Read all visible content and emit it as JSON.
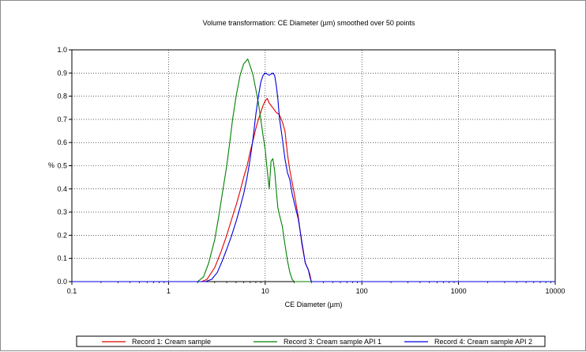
{
  "chart_data": {
    "type": "line",
    "title": "Volume transformation: CE Diameter (µm) smoothed over 50 points",
    "xlabel": "CE Diameter (µm)",
    "ylabel": "%",
    "x_scale": "log",
    "xlim": [
      0.1,
      10000
    ],
    "ylim": [
      0,
      1.0
    ],
    "x_ticks": [
      0.1,
      1,
      10,
      100,
      1000,
      10000
    ],
    "x_tick_labels": [
      "0.1",
      "1",
      "10",
      "100",
      "1000",
      "10000"
    ],
    "y_ticks": [
      0,
      0.1,
      0.2,
      0.3,
      0.4,
      0.5,
      0.6,
      0.7,
      0.8,
      0.9,
      1.0
    ],
    "y_tick_labels": [
      "0.0",
      "0.1",
      "0.2",
      "0.3",
      "0.4",
      "0.5",
      "0.6",
      "0.7",
      "0.8",
      "0.9",
      "1.0"
    ],
    "grid": "dotted",
    "legend_position": "bottom",
    "series": [
      {
        "name": "Record 1: Cream sample",
        "color": "#e00000",
        "points": [
          [
            0.1,
            0
          ],
          [
            2.2,
            0
          ],
          [
            2.5,
            0.01
          ],
          [
            3,
            0.06
          ],
          [
            3.5,
            0.13
          ],
          [
            4,
            0.2
          ],
          [
            4.5,
            0.27
          ],
          [
            5,
            0.33
          ],
          [
            5.5,
            0.39
          ],
          [
            6,
            0.45
          ],
          [
            6.5,
            0.5
          ],
          [
            7,
            0.56
          ],
          [
            7.5,
            0.61
          ],
          [
            8,
            0.66
          ],
          [
            8.5,
            0.7
          ],
          [
            9,
            0.73
          ],
          [
            9.5,
            0.76
          ],
          [
            10,
            0.78
          ],
          [
            10.5,
            0.79
          ],
          [
            11,
            0.77
          ],
          [
            12,
            0.75
          ],
          [
            13,
            0.73
          ],
          [
            14,
            0.72
          ],
          [
            15,
            0.69
          ],
          [
            16,
            0.65
          ],
          [
            17,
            0.55
          ],
          [
            18,
            0.48
          ],
          [
            20,
            0.38
          ],
          [
            22,
            0.28
          ],
          [
            24,
            0.16
          ],
          [
            26,
            0.08
          ],
          [
            28,
            0.05
          ],
          [
            29,
            0.03
          ],
          [
            30,
            0.0
          ],
          [
            10000,
            0
          ]
        ]
      },
      {
        "name": "Record 3: Cream sample API 1",
        "color": "#008000",
        "points": [
          [
            0.1,
            0
          ],
          [
            2,
            0
          ],
          [
            2.3,
            0.02
          ],
          [
            2.6,
            0.08
          ],
          [
            3,
            0.18
          ],
          [
            3.3,
            0.28
          ],
          [
            3.6,
            0.38
          ],
          [
            4,
            0.5
          ],
          [
            4.3,
            0.6
          ],
          [
            4.6,
            0.7
          ],
          [
            5,
            0.8
          ],
          [
            5.5,
            0.89
          ],
          [
            6,
            0.94
          ],
          [
            6.3,
            0.95
          ],
          [
            6.6,
            0.96
          ],
          [
            7,
            0.93
          ],
          [
            7.5,
            0.89
          ],
          [
            8,
            0.83
          ],
          [
            8.5,
            0.77
          ],
          [
            9,
            0.7
          ],
          [
            9.5,
            0.63
          ],
          [
            10,
            0.57
          ],
          [
            10.5,
            0.48
          ],
          [
            11,
            0.4
          ],
          [
            11.5,
            0.52
          ],
          [
            12,
            0.53
          ],
          [
            12.5,
            0.48
          ],
          [
            13,
            0.4
          ],
          [
            13.5,
            0.32
          ],
          [
            14,
            0.29
          ],
          [
            15,
            0.24
          ],
          [
            16,
            0.16
          ],
          [
            17,
            0.09
          ],
          [
            18,
            0.04
          ],
          [
            19,
            0.01
          ],
          [
            20,
            0.0
          ],
          [
            10000,
            0
          ]
        ]
      },
      {
        "name": "Record 4: Cream sample API 2",
        "color": "#0000e0",
        "points": [
          [
            0.1,
            0
          ],
          [
            2.4,
            0
          ],
          [
            2.8,
            0.01
          ],
          [
            3.2,
            0.04
          ],
          [
            3.6,
            0.09
          ],
          [
            4,
            0.14
          ],
          [
            4.5,
            0.2
          ],
          [
            5,
            0.26
          ],
          [
            5.5,
            0.32
          ],
          [
            6,
            0.38
          ],
          [
            6.5,
            0.45
          ],
          [
            7,
            0.53
          ],
          [
            7.5,
            0.62
          ],
          [
            8,
            0.72
          ],
          [
            8.5,
            0.8
          ],
          [
            9,
            0.86
          ],
          [
            9.5,
            0.89
          ],
          [
            10,
            0.9
          ],
          [
            11,
            0.89
          ],
          [
            12,
            0.9
          ],
          [
            12.5,
            0.89
          ],
          [
            13,
            0.85
          ],
          [
            13.5,
            0.79
          ],
          [
            14,
            0.71
          ],
          [
            15,
            0.62
          ],
          [
            16,
            0.53
          ],
          [
            17,
            0.47
          ],
          [
            18,
            0.44
          ],
          [
            19,
            0.38
          ],
          [
            20,
            0.34
          ],
          [
            22,
            0.27
          ],
          [
            24,
            0.17
          ],
          [
            26,
            0.08
          ],
          [
            28,
            0.05
          ],
          [
            29,
            0.02
          ],
          [
            30,
            0.0
          ],
          [
            10000,
            0
          ]
        ]
      }
    ]
  }
}
